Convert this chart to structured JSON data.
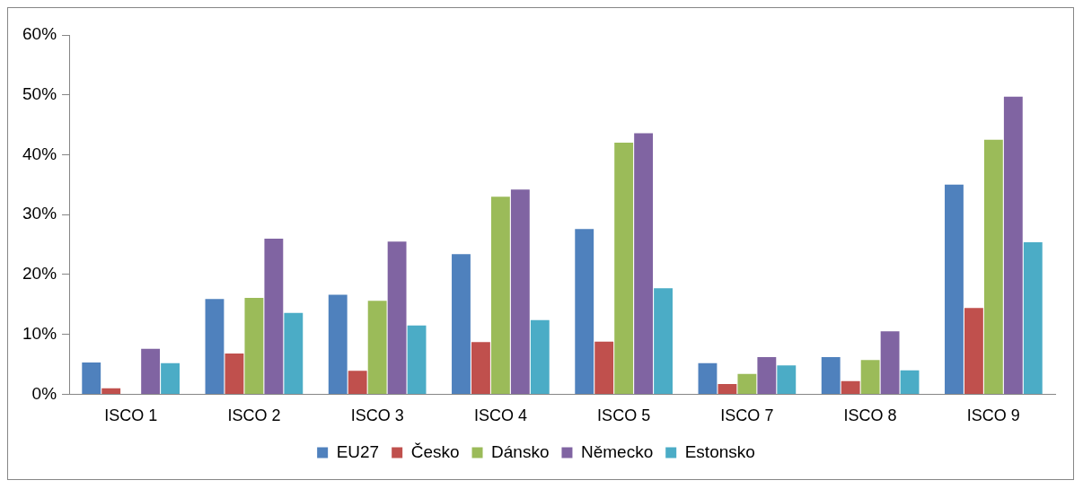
{
  "chart_data": {
    "type": "bar",
    "categories": [
      "ISCO 1",
      "ISCO 2",
      "ISCO 3",
      "ISCO 4",
      "ISCO 5",
      "ISCO 7",
      "ISCO 8",
      "ISCO 9"
    ],
    "series": [
      {
        "name": "EU27",
        "color": "#4f81bd",
        "values": [
          5.3,
          15.9,
          16.6,
          23.4,
          27.6,
          5.2,
          6.2,
          35.0
        ]
      },
      {
        "name": "Česko",
        "color": "#c0504d",
        "values": [
          1.0,
          6.8,
          3.9,
          8.7,
          8.8,
          1.7,
          2.2,
          14.4
        ]
      },
      {
        "name": "Dánsko",
        "color": "#9bbb59",
        "values": [
          null,
          16.1,
          15.6,
          33.0,
          42.0,
          3.4,
          5.7,
          42.5
        ]
      },
      {
        "name": "Německo",
        "color": "#8064a2",
        "values": [
          7.6,
          26.0,
          25.5,
          34.2,
          43.6,
          6.2,
          10.5,
          49.7
        ]
      },
      {
        "name": "Estonsko",
        "color": "#4bacc6",
        "values": [
          5.2,
          13.6,
          11.5,
          12.4,
          17.7,
          4.8,
          4.0,
          25.4
        ]
      }
    ],
    "ylim": [
      0,
      60
    ],
    "yticks": [
      {
        "value": 0,
        "label": "0%"
      },
      {
        "value": 10,
        "label": "10%"
      },
      {
        "value": 20,
        "label": "20%"
      },
      {
        "value": 30,
        "label": "30%"
      },
      {
        "value": 40,
        "label": "40%"
      },
      {
        "value": 50,
        "label": "50%"
      },
      {
        "value": 60,
        "label": "60%"
      }
    ],
    "grid": false,
    "legend": "bottom"
  }
}
